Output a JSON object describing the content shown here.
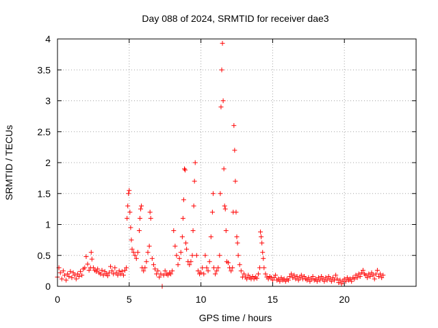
{
  "chart_data": {
    "type": "scatter",
    "title": "Day 088 of 2024, SRMTID for receiver dae3",
    "xlabel": "GPS time / hours",
    "ylabel": "SRMTID / TECUs",
    "xlim": [
      0,
      25
    ],
    "ylim": [
      0,
      4
    ],
    "xticks": [
      0,
      5,
      10,
      15,
      20
    ],
    "xtick_labels": [
      "0",
      "5",
      "10",
      "15",
      "20"
    ],
    "yticks": [
      0,
      0.5,
      1,
      1.5,
      2,
      2.5,
      3,
      3.5,
      4
    ],
    "ytick_labels": [
      "0",
      "0.5",
      "1",
      "1.5",
      "2",
      "2.5",
      "3",
      "3.5",
      "4"
    ],
    "grid": true,
    "marker": "+",
    "color": "#ff0000",
    "series": [
      {
        "name": "SRMTID",
        "points": [
          [
            0.0,
            0.15
          ],
          [
            0.1,
            0.3
          ],
          [
            0.2,
            0.22
          ],
          [
            0.3,
            0.12
          ],
          [
            0.4,
            0.25
          ],
          [
            0.5,
            0.18
          ],
          [
            0.6,
            0.1
          ],
          [
            0.7,
            0.2
          ],
          [
            0.8,
            0.16
          ],
          [
            0.9,
            0.24
          ],
          [
            1.0,
            0.14
          ],
          [
            1.1,
            0.22
          ],
          [
            1.2,
            0.18
          ],
          [
            1.3,
            0.12
          ],
          [
            1.4,
            0.2
          ],
          [
            1.5,
            0.16
          ],
          [
            1.6,
            0.24
          ],
          [
            1.7,
            0.18
          ],
          [
            1.8,
            0.28
          ],
          [
            1.9,
            0.3
          ],
          [
            2.0,
            0.48
          ],
          [
            2.1,
            0.36
          ],
          [
            2.2,
            0.26
          ],
          [
            2.3,
            0.3
          ],
          [
            2.35,
            0.55
          ],
          [
            2.4,
            0.44
          ],
          [
            2.5,
            0.3
          ],
          [
            2.6,
            0.26
          ],
          [
            2.7,
            0.24
          ],
          [
            2.8,
            0.28
          ],
          [
            2.9,
            0.22
          ],
          [
            3.0,
            0.2
          ],
          [
            3.1,
            0.26
          ],
          [
            3.2,
            0.18
          ],
          [
            3.3,
            0.24
          ],
          [
            3.4,
            0.2
          ],
          [
            3.5,
            0.17
          ],
          [
            3.6,
            0.22
          ],
          [
            3.7,
            0.32
          ],
          [
            3.8,
            0.25
          ],
          [
            3.9,
            0.2
          ],
          [
            4.0,
            0.3
          ],
          [
            4.1,
            0.22
          ],
          [
            4.2,
            0.18
          ],
          [
            4.3,
            0.25
          ],
          [
            4.4,
            0.2
          ],
          [
            4.5,
            0.24
          ],
          [
            4.6,
            0.18
          ],
          [
            4.7,
            0.26
          ],
          [
            4.8,
            0.3
          ],
          [
            4.85,
            1.1
          ],
          [
            4.9,
            1.3
          ],
          [
            4.95,
            1.5
          ],
          [
            5.0,
            1.55
          ],
          [
            5.05,
            1.2
          ],
          [
            5.1,
            0.95
          ],
          [
            5.15,
            0.75
          ],
          [
            5.2,
            0.6
          ],
          [
            5.3,
            0.55
          ],
          [
            5.4,
            0.5
          ],
          [
            5.5,
            0.45
          ],
          [
            5.6,
            0.55
          ],
          [
            5.7,
            0.9
          ],
          [
            5.75,
            1.1
          ],
          [
            5.8,
            1.25
          ],
          [
            5.85,
            1.3
          ],
          [
            5.9,
            0.3
          ],
          [
            6.0,
            0.25
          ],
          [
            6.1,
            0.3
          ],
          [
            6.2,
            0.4
          ],
          [
            6.3,
            0.55
          ],
          [
            6.4,
            0.65
          ],
          [
            6.45,
            1.2
          ],
          [
            6.5,
            1.1
          ],
          [
            6.6,
            0.45
          ],
          [
            6.7,
            0.35
          ],
          [
            6.8,
            0.28
          ],
          [
            6.9,
            0.2
          ],
          [
            7.0,
            0.25
          ],
          [
            7.1,
            0.15
          ],
          [
            7.2,
            0.2
          ],
          [
            7.3,
            0.0
          ],
          [
            7.4,
            0.18
          ],
          [
            7.5,
            0.25
          ],
          [
            7.6,
            0.2
          ],
          [
            7.7,
            0.18
          ],
          [
            7.8,
            0.22
          ],
          [
            7.9,
            0.2
          ],
          [
            8.0,
            0.25
          ],
          [
            8.1,
            0.9
          ],
          [
            8.2,
            0.65
          ],
          [
            8.3,
            0.5
          ],
          [
            8.4,
            0.35
          ],
          [
            8.5,
            0.45
          ],
          [
            8.6,
            0.55
          ],
          [
            8.7,
            0.8
          ],
          [
            8.75,
            1.1
          ],
          [
            8.8,
            1.4
          ],
          [
            8.85,
            1.9
          ],
          [
            8.9,
            1.88
          ],
          [
            8.95,
            0.7
          ],
          [
            9.0,
            0.6
          ],
          [
            9.1,
            0.4
          ],
          [
            9.2,
            0.35
          ],
          [
            9.3,
            0.4
          ],
          [
            9.4,
            0.5
          ],
          [
            9.45,
            0.9
          ],
          [
            9.5,
            1.3
          ],
          [
            9.55,
            1.7
          ],
          [
            9.6,
            2.0
          ],
          [
            9.7,
            0.5
          ],
          [
            9.8,
            0.25
          ],
          [
            9.9,
            0.2
          ],
          [
            10.0,
            0.22
          ],
          [
            10.1,
            0.3
          ],
          [
            10.2,
            0.2
          ],
          [
            10.3,
            0.5
          ],
          [
            10.4,
            0.3
          ],
          [
            10.5,
            0.25
          ],
          [
            10.6,
            0.4
          ],
          [
            10.7,
            0.8
          ],
          [
            10.8,
            1.2
          ],
          [
            10.85,
            1.5
          ],
          [
            10.9,
            0.3
          ],
          [
            11.0,
            0.2
          ],
          [
            11.1,
            0.25
          ],
          [
            11.2,
            0.3
          ],
          [
            11.3,
            0.5
          ],
          [
            11.35,
            1.5
          ],
          [
            11.4,
            2.9
          ],
          [
            11.45,
            3.5
          ],
          [
            11.5,
            3.93
          ],
          [
            11.55,
            3.0
          ],
          [
            11.6,
            1.9
          ],
          [
            11.65,
            1.3
          ],
          [
            11.7,
            1.25
          ],
          [
            11.75,
            0.9
          ],
          [
            11.8,
            0.4
          ],
          [
            11.9,
            0.38
          ],
          [
            12.0,
            0.3
          ],
          [
            12.1,
            0.25
          ],
          [
            12.2,
            0.3
          ],
          [
            12.25,
            1.2
          ],
          [
            12.3,
            2.6
          ],
          [
            12.35,
            2.2
          ],
          [
            12.4,
            1.7
          ],
          [
            12.45,
            1.2
          ],
          [
            12.5,
            0.8
          ],
          [
            12.55,
            0.7
          ],
          [
            12.6,
            0.5
          ],
          [
            12.7,
            0.35
          ],
          [
            12.8,
            0.25
          ],
          [
            12.9,
            0.15
          ],
          [
            13.0,
            0.2
          ],
          [
            13.1,
            0.15
          ],
          [
            13.2,
            0.12
          ],
          [
            13.3,
            0.18
          ],
          [
            13.4,
            0.14
          ],
          [
            13.5,
            0.12
          ],
          [
            13.6,
            0.16
          ],
          [
            13.7,
            0.12
          ],
          [
            13.8,
            0.15
          ],
          [
            13.9,
            0.13
          ],
          [
            14.0,
            0.2
          ],
          [
            14.1,
            0.3
          ],
          [
            14.15,
            0.88
          ],
          [
            14.2,
            0.8
          ],
          [
            14.25,
            0.7
          ],
          [
            14.3,
            0.55
          ],
          [
            14.35,
            0.45
          ],
          [
            14.4,
            0.3
          ],
          [
            14.5,
            0.2
          ],
          [
            14.6,
            0.15
          ],
          [
            14.7,
            0.12
          ],
          [
            14.8,
            0.16
          ],
          [
            14.9,
            0.14
          ],
          [
            15.0,
            0.1
          ],
          [
            15.1,
            0.14
          ],
          [
            15.2,
            0.18
          ],
          [
            15.3,
            0.1
          ],
          [
            15.4,
            0.12
          ],
          [
            15.5,
            0.08
          ],
          [
            15.6,
            0.14
          ],
          [
            15.7,
            0.1
          ],
          [
            15.8,
            0.12
          ],
          [
            15.9,
            0.08
          ],
          [
            16.0,
            0.12
          ],
          [
            16.1,
            0.1
          ],
          [
            16.2,
            0.16
          ],
          [
            16.3,
            0.2
          ],
          [
            16.4,
            0.14
          ],
          [
            16.5,
            0.18
          ],
          [
            16.6,
            0.12
          ],
          [
            16.7,
            0.16
          ],
          [
            16.8,
            0.1
          ],
          [
            16.9,
            0.14
          ],
          [
            17.0,
            0.18
          ],
          [
            17.1,
            0.12
          ],
          [
            17.2,
            0.16
          ],
          [
            17.3,
            0.12
          ],
          [
            17.4,
            0.1
          ],
          [
            17.5,
            0.14
          ],
          [
            17.6,
            0.08
          ],
          [
            17.7,
            0.12
          ],
          [
            17.8,
            0.16
          ],
          [
            17.9,
            0.1
          ],
          [
            18.0,
            0.12
          ],
          [
            18.1,
            0.08
          ],
          [
            18.2,
            0.14
          ],
          [
            18.3,
            0.1
          ],
          [
            18.4,
            0.16
          ],
          [
            18.5,
            0.12
          ],
          [
            18.6,
            0.08
          ],
          [
            18.7,
            0.14
          ],
          [
            18.8,
            0.1
          ],
          [
            18.9,
            0.16
          ],
          [
            19.0,
            0.12
          ],
          [
            19.1,
            0.08
          ],
          [
            19.2,
            0.14
          ],
          [
            19.3,
            0.1
          ],
          [
            19.4,
            0.18
          ],
          [
            19.5,
            0.12
          ],
          [
            19.6,
            0.06
          ],
          [
            19.7,
            0.1
          ],
          [
            19.8,
            0.04
          ],
          [
            19.9,
            0.08
          ],
          [
            20.0,
            0.12
          ],
          [
            20.1,
            0.08
          ],
          [
            20.2,
            0.14
          ],
          [
            20.3,
            0.1
          ],
          [
            20.4,
            0.12
          ],
          [
            20.5,
            0.08
          ],
          [
            20.6,
            0.14
          ],
          [
            20.7,
            0.12
          ],
          [
            20.8,
            0.18
          ],
          [
            20.9,
            0.14
          ],
          [
            21.0,
            0.2
          ],
          [
            21.1,
            0.16
          ],
          [
            21.2,
            0.22
          ],
          [
            21.3,
            0.26
          ],
          [
            21.4,
            0.2
          ],
          [
            21.5,
            0.18
          ],
          [
            21.6,
            0.14
          ],
          [
            21.7,
            0.2
          ],
          [
            21.8,
            0.16
          ],
          [
            21.9,
            0.22
          ],
          [
            22.0,
            0.18
          ],
          [
            22.1,
            0.12
          ],
          [
            22.2,
            0.2
          ],
          [
            22.3,
            0.26
          ],
          [
            22.4,
            0.16
          ],
          [
            22.5,
            0.2
          ],
          [
            22.6,
            0.14
          ],
          [
            22.7,
            0.18
          ]
        ]
      }
    ]
  }
}
